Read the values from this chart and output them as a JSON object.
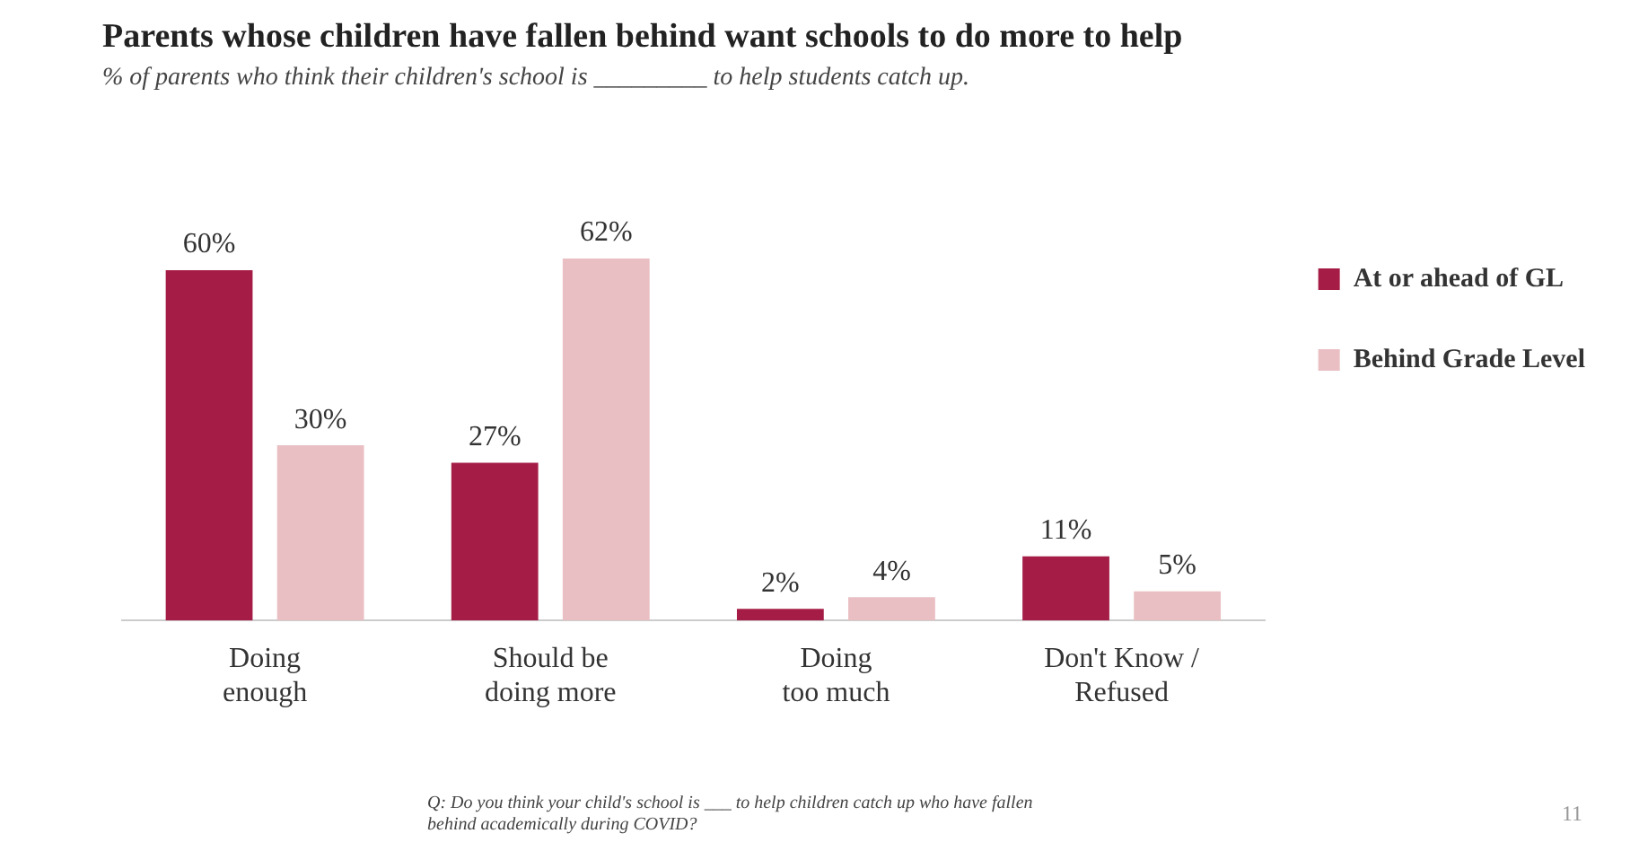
{
  "chart_data": {
    "type": "bar",
    "title": "Parents whose children have fallen behind want schools to do more to help",
    "subtitle": "% of parents who think their children's school is _________ to help students catch up.",
    "categories": [
      "Doing enough",
      "Should be doing more",
      "Doing too much",
      "Don't Know / Refused"
    ],
    "series": [
      {
        "name": "At or ahead of GL",
        "color": "#a51d47",
        "values": [
          60,
          27,
          2,
          11
        ],
        "value_labels": [
          "60%",
          "27%",
          "2%",
          "11%"
        ]
      },
      {
        "name": "Behind Grade Level",
        "color": "#e9bfc3",
        "values": [
          30,
          62,
          4,
          5
        ],
        "value_labels": [
          "30%",
          "62%",
          "4%",
          "5%"
        ]
      }
    ],
    "tick_labels": "x",
    "grid": false,
    "legend": "top right",
    "annotations": [
      "Q: Do you think your child's school is ___ to help children catch up who have fallen behind academically during COVID?",
      "11"
    ]
  }
}
